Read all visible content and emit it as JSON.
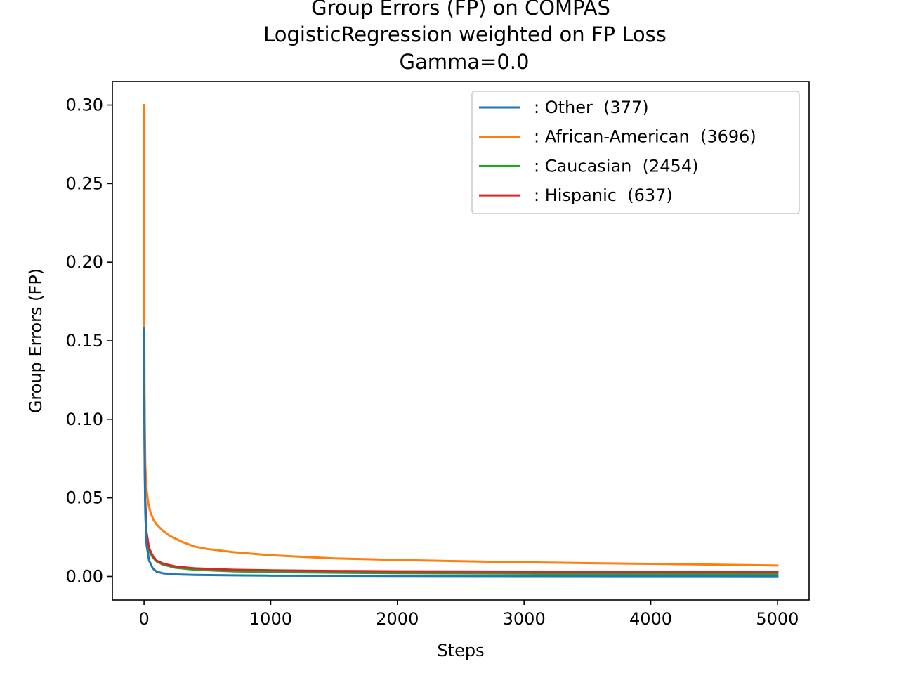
{
  "chart_data": {
    "type": "line",
    "title_lines": [
      "Group Errors (FP) on COMPAS",
      "LogisticRegression weighted on FP Loss",
      "Gamma=0.0"
    ],
    "xlabel": "Steps",
    "ylabel": "Group Errors (FP)",
    "xlim": [
      -250,
      5250
    ],
    "ylim": [
      -0.015,
      0.315
    ],
    "xticks": [
      0,
      1000,
      2000,
      3000,
      4000,
      5000
    ],
    "xtick_labels": [
      "0",
      "1000",
      "2000",
      "3000",
      "4000",
      "5000"
    ],
    "yticks": [
      0.0,
      0.05,
      0.1,
      0.15,
      0.2,
      0.25,
      0.3
    ],
    "ytick_labels": [
      "0.00",
      "0.05",
      "0.10",
      "0.15",
      "0.20",
      "0.25",
      "0.30"
    ],
    "grid": false,
    "legend_position": "top-right",
    "series": [
      {
        "name": ": Other  (377)",
        "color": "#1f77b4",
        "x": [
          0,
          2,
          5,
          10,
          20,
          40,
          70,
          100,
          150,
          250,
          400,
          700,
          1000,
          1500,
          2000,
          3000,
          4000,
          5000
        ],
        "y": [
          0.158,
          0.12,
          0.07,
          0.04,
          0.02,
          0.01,
          0.005,
          0.003,
          0.002,
          0.0013,
          0.001,
          0.0007,
          0.0005,
          0.0004,
          0.0003,
          0.0002,
          0.00015,
          0.0001
        ]
      },
      {
        "name": ": African-American  (3696)",
        "color": "#ff7f0e",
        "x": [
          0,
          2,
          5,
          10,
          20,
          35,
          50,
          75,
          100,
          150,
          200,
          300,
          400,
          500,
          700,
          1000,
          1500,
          2000,
          2500,
          3000,
          3500,
          4000,
          4500,
          5000
        ],
        "y": [
          0.3,
          0.16,
          0.1,
          0.07,
          0.055,
          0.046,
          0.041,
          0.036,
          0.033,
          0.029,
          0.026,
          0.022,
          0.019,
          0.0175,
          0.0155,
          0.0135,
          0.0115,
          0.0105,
          0.0097,
          0.009,
          0.0085,
          0.008,
          0.0075,
          0.007
        ]
      },
      {
        "name": ": Caucasian  (2454)",
        "color": "#2ca02c",
        "x": [
          0,
          2,
          5,
          10,
          20,
          40,
          70,
          100,
          150,
          250,
          400,
          700,
          1000,
          1500,
          2000,
          3000,
          4000,
          5000
        ],
        "y": [
          0.158,
          0.12,
          0.075,
          0.045,
          0.025,
          0.016,
          0.012,
          0.0095,
          0.0075,
          0.0055,
          0.0043,
          0.0033,
          0.0028,
          0.0024,
          0.0021,
          0.0018,
          0.0016,
          0.0015
        ]
      },
      {
        "name": ": Hispanic  (637)",
        "color": "#d62728",
        "x": [
          0,
          2,
          5,
          10,
          20,
          40,
          70,
          100,
          150,
          250,
          400,
          700,
          1000,
          1500,
          2000,
          3000,
          4000,
          5000
        ],
        "y": [
          0.158,
          0.12,
          0.078,
          0.048,
          0.028,
          0.018,
          0.013,
          0.01,
          0.0082,
          0.0063,
          0.0052,
          0.0043,
          0.0039,
          0.0035,
          0.0033,
          0.0031,
          0.003,
          0.0029
        ]
      }
    ]
  }
}
